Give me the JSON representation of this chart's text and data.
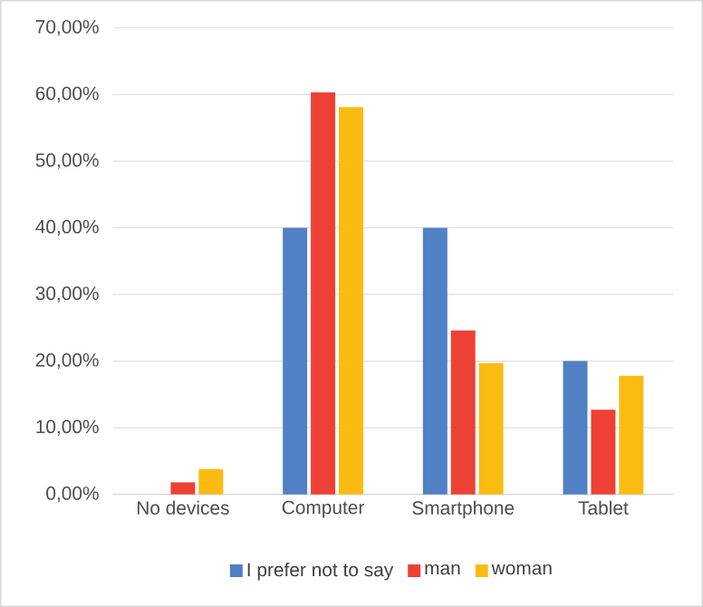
{
  "chart_data": {
    "type": "bar",
    "categories": [
      "No devices",
      "Computer",
      "Smartphone",
      "Tablet"
    ],
    "series": [
      {
        "name": "I prefer not to say",
        "color": "#5280c4",
        "values": [
          0,
          40,
          40,
          20
        ]
      },
      {
        "name": "man",
        "color": "#ee4136",
        "values": [
          1.8,
          60.3,
          24.6,
          12.7
        ]
      },
      {
        "name": "woman",
        "color": "#fbbb12",
        "values": [
          3.8,
          58.1,
          19.7,
          17.8
        ]
      }
    ],
    "ylim": [
      0,
      70
    ],
    "yticks": [
      {
        "value": 0,
        "label": "0,00%"
      },
      {
        "value": 10,
        "label": "10,00%"
      },
      {
        "value": 20,
        "label": "20,00%"
      },
      {
        "value": 30,
        "label": "30,00%"
      },
      {
        "value": 40,
        "label": "40,00%"
      },
      {
        "value": 50,
        "label": "50,00%"
      },
      {
        "value": 60,
        "label": "60,00%"
      },
      {
        "value": 70,
        "label": "70,00%"
      }
    ],
    "grid": "y",
    "legend": "bottom"
  }
}
